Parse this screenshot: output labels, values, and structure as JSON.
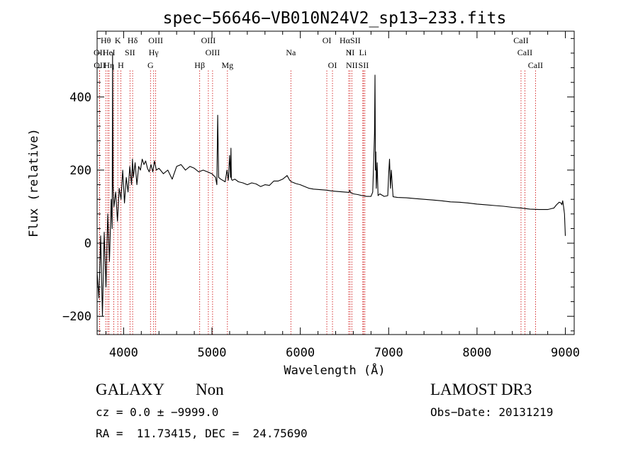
{
  "chart_data": {
    "type": "line",
    "title": "spec−56646−VB010N24V2_sp13−233.fits",
    "xlabel": "Wavelength (Å)",
    "ylabel": "Flux (relative)",
    "xlim": [
      3700,
      9100
    ],
    "ylim": [
      -250,
      580
    ],
    "xticks": [
      4000,
      5000,
      6000,
      7000,
      8000,
      9000
    ],
    "yticks": [
      -200,
      0,
      200,
      400
    ],
    "grid": false,
    "series": [
      {
        "x": [
          3700,
          3720,
          3740,
          3760,
          3780,
          3800,
          3820,
          3840,
          3860,
          3870,
          3875,
          3880,
          3890,
          3910,
          3930,
          3950,
          3970,
          3990,
          4010,
          4030,
          4050,
          4070,
          4090,
          4100,
          4110,
          4130,
          4150,
          4170,
          4190,
          4210,
          4230,
          4250,
          4270,
          4290,
          4310,
          4330,
          4350,
          4370,
          4400,
          4450,
          4500,
          4550,
          4600,
          4650,
          4700,
          4750,
          4800,
          4850,
          4900,
          4950,
          5000,
          5040,
          5055,
          5065,
          5075,
          5100,
          5150,
          5170,
          5185,
          5200,
          5210,
          5215,
          5220,
          5230,
          5260,
          5300,
          5350,
          5400,
          5450,
          5500,
          5550,
          5600,
          5650,
          5700,
          5750,
          5800,
          5850,
          5880,
          5900,
          5950,
          6000,
          6050,
          6100,
          6150,
          6200,
          6250,
          6300,
          6350,
          6400,
          6450,
          6500,
          6550,
          6560,
          6570,
          6600,
          6650,
          6700,
          6750,
          6800,
          6820,
          6830,
          6840,
          6845,
          6850,
          6855,
          6860,
          6870,
          6880,
          6900,
          6950,
          6990,
          7000,
          7010,
          7020,
          7030,
          7050,
          7100,
          7200,
          7300,
          7400,
          7500,
          7600,
          7700,
          7800,
          7900,
          8000,
          8100,
          8200,
          8300,
          8400,
          8500,
          8600,
          8700,
          8800,
          8850,
          8870,
          8900,
          8930,
          8950,
          8960,
          8970,
          8980,
          8990,
          9000
        ],
        "y": [
          -80,
          -150,
          20,
          -200,
          30,
          -120,
          80,
          -50,
          120,
          40,
          520,
          160,
          100,
          140,
          60,
          150,
          120,
          200,
          110,
          180,
          140,
          210,
          160,
          230,
          180,
          220,
          160,
          210,
          200,
          230,
          215,
          225,
          205,
          195,
          215,
          195,
          225,
          200,
          205,
          190,
          200,
          175,
          210,
          215,
          200,
          210,
          205,
          195,
          200,
          195,
          190,
          180,
          160,
          350,
          180,
          175,
          168,
          200,
          172,
          240,
          180,
          260,
          175,
          172,
          175,
          168,
          165,
          160,
          165,
          162,
          155,
          160,
          158,
          170,
          170,
          175,
          185,
          172,
          168,
          163,
          160,
          155,
          150,
          148,
          147,
          146,
          145,
          143,
          142,
          141,
          140,
          139,
          145,
          138,
          135,
          133,
          130,
          128,
          128,
          140,
          220,
          300,
          460,
          200,
          250,
          150,
          220,
          130,
          135,
          128,
          130,
          190,
          230,
          150,
          200,
          127,
          125,
          124,
          122,
          120,
          118,
          116,
          113,
          112,
          110,
          107,
          105,
          103,
          101,
          98,
          96,
          93,
          92,
          92,
          95,
          96,
          105,
          112,
          110,
          105,
          116,
          100,
          80,
          20
        ]
      }
    ],
    "annotations": [
      {
        "label": "Hθ",
        "x": 3798,
        "row": 0
      },
      {
        "label": "K",
        "x": 3934,
        "row": 0
      },
      {
        "label": "Hδ",
        "x": 4102,
        "row": 0
      },
      {
        "label": "OIII",
        "x": 4363,
        "row": 0
      },
      {
        "label": "OIII",
        "x": 4959,
        "row": 0
      },
      {
        "label": "OI",
        "x": 6300,
        "row": 0
      },
      {
        "label": "HαSII",
        "x": 6563,
        "row": 0
      },
      {
        "label": "CaII",
        "x": 8498,
        "row": 0
      },
      {
        "label": "OII",
        "x": 3727,
        "row": 1
      },
      {
        "label": "He",
        "x": 3820,
        "row": 1
      },
      {
        "label": "I",
        "x": 3889,
        "row": 1
      },
      {
        "label": "SII",
        "x": 4072,
        "row": 1
      },
      {
        "label": "Hγ",
        "x": 4340,
        "row": 1
      },
      {
        "label": "OIII",
        "x": 5007,
        "row": 1
      },
      {
        "label": "Na",
        "x": 5893,
        "row": 1
      },
      {
        "label": "N",
        "x": 6548,
        "row": 1
      },
      {
        "label": "II",
        "x": 6583,
        "row": 1
      },
      {
        "label": "Li",
        "x": 6708,
        "row": 1
      },
      {
        "label": "CaII",
        "x": 8542,
        "row": 1
      },
      {
        "label": "OII",
        "x": 3729,
        "row": 2
      },
      {
        "label": "Hη",
        "x": 3835,
        "row": 2
      },
      {
        "label": "H",
        "x": 3968,
        "row": 2
      },
      {
        "label": "G",
        "x": 4304,
        "row": 2
      },
      {
        "label": "Hβ",
        "x": 4861,
        "row": 2
      },
      {
        "label": "Mg",
        "x": 5175,
        "row": 2
      },
      {
        "label": "OI",
        "x": 6364,
        "row": 2
      },
      {
        "label": "NII",
        "x": 6583,
        "row": 2
      },
      {
        "label": "SII",
        "x": 6716,
        "row": 2
      },
      {
        "label": "CaII",
        "x": 8662,
        "row": 2
      }
    ],
    "line_marks": [
      3727,
      3729,
      3798,
      3820,
      3835,
      3889,
      3934,
      3968,
      4072,
      4102,
      4304,
      4340,
      4363,
      4861,
      4959,
      5007,
      5175,
      5893,
      6300,
      6364,
      6548,
      6563,
      6583,
      6708,
      6716,
      6731,
      8498,
      8542,
      8662
    ],
    "z": 0.0
  },
  "info": {
    "class_label": "GALAXY",
    "subclass": "Non",
    "survey": "LAMOST DR3",
    "cz_line": "cz = 0.0 ± −9999.0",
    "obs_date": "Obs−Date: 20131219",
    "radec": "RA =  11.73415, DEC =  24.75690"
  },
  "colors": {
    "spectrum": "#000000",
    "marker_lines": "#cc0000",
    "axes": "#000000"
  }
}
